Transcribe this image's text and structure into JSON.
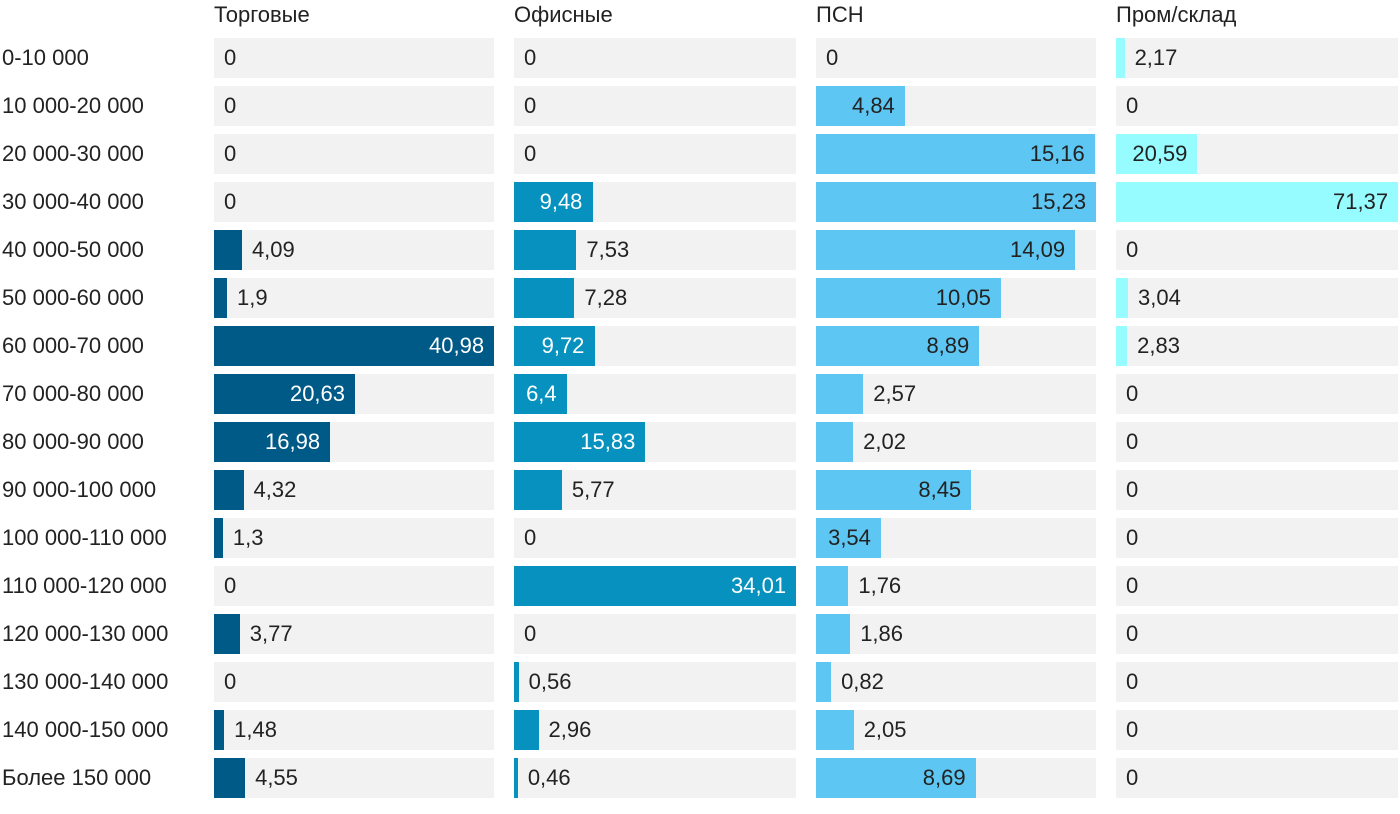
{
  "chart_data": {
    "type": "bar",
    "orientation": "horizontal",
    "layout": "small-multiples",
    "categories": [
      "0-10 000",
      "10 000-20 000",
      "20 000-30 000",
      "30 000-40 000",
      "40 000-50 000",
      "50 000-60 000",
      "60 000-70 000",
      "70 000-80 000",
      "80 000-90 000",
      "90 000-100 000",
      "100 000-110 000",
      "110 000-120 000",
      "120 000-130 000",
      "130 000-140 000",
      "140 000-150 000",
      "Более 150 000"
    ],
    "series": [
      {
        "name": "Торговые",
        "color": "#005a87",
        "values": [
          0,
          0,
          0,
          0,
          4.09,
          1.9,
          40.98,
          20.63,
          16.98,
          4.32,
          1.3,
          0,
          3.77,
          0,
          1.48,
          4.55
        ],
        "labels": [
          "0",
          "0",
          "0",
          "0",
          "4,09",
          "1,9",
          "40,98",
          "20,63",
          "16,98",
          "4,32",
          "1,3",
          "0",
          "3,77",
          "0",
          "1,48",
          "4,55"
        ]
      },
      {
        "name": "Офисные",
        "color": "#0791be",
        "values": [
          0,
          0,
          0,
          9.48,
          7.53,
          7.28,
          9.72,
          6.4,
          15.83,
          5.77,
          0,
          34.01,
          0,
          0.56,
          2.96,
          0.46
        ],
        "labels": [
          "0",
          "0",
          "0",
          "9,48",
          "7,53",
          "7,28",
          "9,72",
          "6,4",
          "15,83",
          "5,77",
          "0",
          "34,01",
          "0",
          "0,56",
          "2,96",
          "0,46"
        ]
      },
      {
        "name": "ПСН",
        "color": "#5ec6f2",
        "values": [
          0,
          4.84,
          15.16,
          15.23,
          14.09,
          10.05,
          8.89,
          2.57,
          2.02,
          8.45,
          3.54,
          1.76,
          1.86,
          0.82,
          2.05,
          8.69
        ],
        "labels": [
          "0",
          "4,84",
          "15,16",
          "15,23",
          "14,09",
          "10,05",
          "8,89",
          "2,57",
          "2,02",
          "8,45",
          "3,54",
          "1,76",
          "1,86",
          "0,82",
          "2,05",
          "8,69"
        ]
      },
      {
        "name": "Пром/склад",
        "color": "#97fcff",
        "values": [
          2.17,
          0,
          20.59,
          71.37,
          0,
          3.04,
          2.83,
          0,
          0,
          0,
          0,
          0,
          0,
          0,
          0,
          0
        ],
        "labels": [
          "2,17",
          "0",
          "20,59",
          "71,37",
          "0",
          "3,04",
          "2,83",
          "0",
          "0",
          "0",
          "0",
          "0",
          "0",
          "0",
          "0",
          "0"
        ]
      }
    ],
    "background_color": "#f2f2f2",
    "grid": false,
    "legend": "none"
  }
}
